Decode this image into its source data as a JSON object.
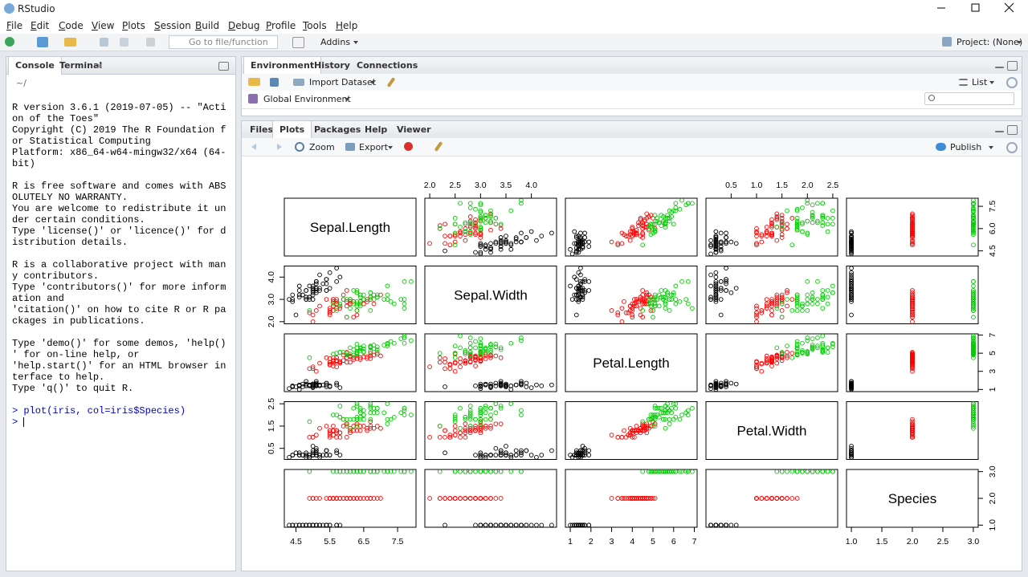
{
  "window": {
    "title": "RStudio"
  },
  "menu": [
    "File",
    "Edit",
    "Code",
    "View",
    "Plots",
    "Session",
    "Build",
    "Debug",
    "Profile",
    "Tools",
    "Help"
  ],
  "toolbar": {
    "goto": "Go to file/function",
    "addins": "Addins",
    "project": "Project: (None)"
  },
  "console": {
    "tabs": [
      "Console",
      "Terminal"
    ],
    "path": "~/",
    "blocks": [
      [
        "R version 3.6.1 (2019-07-05) -- \"Acti",
        "on of the Toes\"",
        "Copyright (C) 2019 The R Foundation f",
        "or Statistical Computing",
        "Platform: x86_64-w64-mingw32/x64 (64-",
        "bit)"
      ],
      [
        "R is free software and comes with ABS",
        "OLUTELY NO WARRANTY.",
        "You are welcome to redistribute it un",
        "der certain conditions.",
        "Type 'license()' or 'licence()' for d",
        "istribution details."
      ],
      [
        "R is a collaborative project with man",
        "y contributors.",
        "Type 'contributors()' for more inform",
        "ation and",
        "'citation()' on how to cite R or R pa",
        "ckages in publications."
      ],
      [
        "Type 'demo()' for some demos, 'help()",
        "' for on-line help, or",
        "'help.start()' for an HTML browser in",
        "terface to help.",
        "Type 'q()' to quit R."
      ]
    ],
    "commands": [
      {
        "prompt": ">",
        "text": "plot(iris, col=iris$Species)"
      },
      {
        "prompt": ">"
      }
    ]
  },
  "environment": {
    "tabs": [
      "Environment",
      "History",
      "Connections"
    ],
    "import": "Import Dataset",
    "view": "List",
    "scope": "Global Environment"
  },
  "files": {
    "tabs": [
      "Files",
      "Plots",
      "Packages",
      "Help",
      "Viewer"
    ],
    "zoom": "Zoom",
    "export": "Export",
    "publish": "Publish"
  },
  "plot": {
    "type": "scatter-matrix",
    "colors": [
      "#000000",
      "#ff0000",
      "#00cd00"
    ],
    "variables": [
      {
        "name": "Sepal.Length",
        "lim": [
          4.156,
          8.044
        ],
        "xticks": [
          4.5,
          5.5,
          6.5,
          7.5
        ],
        "yticks": [
          4.5,
          {
            "value": 6,
            "label": "6.0"
          },
          7.5
        ],
        "values": [
          5.1,
          4.9,
          4.7,
          4.6,
          5.0,
          5.4,
          4.6,
          5.0,
          4.4,
          4.9,
          5.4,
          4.8,
          4.8,
          4.3,
          5.8,
          5.7,
          5.4,
          5.1,
          5.7,
          5.1,
          5.4,
          5.1,
          4.6,
          5.1,
          4.8,
          5.0,
          5.0,
          5.2,
          5.2,
          4.7,
          4.8,
          5.4,
          5.2,
          5.5,
          4.9,
          5.0,
          5.5,
          4.9,
          4.4,
          5.1,
          5.0,
          4.5,
          4.4,
          5.0,
          5.1,
          4.8,
          5.1,
          4.6,
          5.3,
          5.0,
          7.0,
          6.4,
          6.9,
          5.5,
          6.5,
          5.7,
          6.3,
          4.9,
          6.6,
          5.2,
          5.0,
          5.9,
          6.0,
          6.1,
          5.6,
          6.7,
          5.6,
          5.8,
          6.2,
          5.6,
          5.9,
          6.1,
          6.3,
          6.1,
          6.4,
          6.6,
          6.8,
          6.7,
          6.0,
          5.7,
          5.5,
          5.5,
          5.8,
          6.0,
          5.4,
          6.0,
          6.7,
          6.3,
          5.6,
          5.5,
          5.5,
          6.1,
          5.8,
          5.0,
          5.6,
          5.7,
          5.7,
          6.2,
          5.1,
          5.7,
          6.3,
          5.8,
          7.1,
          6.3,
          6.5,
          7.6,
          4.9,
          7.3,
          6.7,
          7.2,
          6.5,
          6.4,
          6.8,
          5.7,
          5.8,
          6.4,
          6.5,
          7.7,
          7.7,
          6.0,
          6.9,
          5.6,
          7.7,
          6.3,
          6.7,
          7.2,
          6.2,
          6.1,
          6.4,
          7.2,
          7.4,
          7.9,
          6.4,
          6.3,
          6.1,
          7.7,
          6.3,
          6.4,
          6.0,
          6.9,
          6.7,
          6.9,
          5.8,
          6.8,
          6.7,
          6.7,
          6.3,
          6.5,
          6.2,
          5.9
        ]
      },
      {
        "name": "Sepal.Width",
        "lim": [
          1.904,
          4.496
        ],
        "xticks": [
          {
            "value": 2,
            "label": "2.0"
          },
          2.5,
          {
            "value": 3,
            "label": "3.0"
          },
          3.5,
          {
            "value": 4,
            "label": "4.0"
          }
        ],
        "yticks": [
          {
            "value": 2,
            "label": "2.0"
          },
          {
            "value": 3,
            "label": "3.0"
          },
          {
            "value": 4,
            "label": "4.0"
          }
        ],
        "values": [
          3.5,
          3.0,
          3.2,
          3.1,
          3.6,
          3.9,
          3.4,
          3.4,
          2.9,
          3.1,
          3.7,
          3.4,
          3.0,
          3.0,
          4.0,
          4.4,
          3.9,
          3.5,
          3.8,
          3.8,
          3.4,
          3.7,
          3.6,
          3.3,
          3.4,
          3.0,
          3.4,
          3.5,
          3.4,
          3.2,
          3.1,
          3.4,
          4.1,
          4.2,
          3.1,
          3.2,
          3.5,
          3.6,
          3.0,
          3.4,
          3.5,
          2.3,
          3.2,
          3.5,
          3.8,
          3.0,
          3.8,
          3.2,
          3.7,
          3.3,
          3.2,
          3.2,
          3.1,
          2.3,
          2.8,
          2.8,
          3.3,
          2.4,
          2.9,
          2.7,
          2.0,
          3.0,
          2.2,
          2.9,
          2.9,
          3.1,
          3.0,
          2.7,
          2.2,
          2.5,
          3.2,
          2.8,
          2.5,
          2.8,
          2.9,
          3.0,
          2.8,
          3.0,
          2.9,
          2.6,
          2.4,
          2.4,
          2.7,
          2.7,
          3.0,
          3.4,
          3.1,
          2.3,
          3.0,
          2.5,
          2.6,
          3.0,
          2.6,
          2.3,
          2.7,
          3.0,
          2.9,
          2.9,
          2.5,
          2.8,
          3.3,
          2.7,
          3.0,
          2.9,
          3.0,
          3.0,
          2.5,
          2.9,
          2.5,
          3.6,
          3.2,
          2.7,
          3.0,
          2.5,
          2.8,
          3.2,
          3.0,
          3.8,
          2.6,
          2.2,
          3.2,
          2.8,
          2.8,
          2.7,
          3.3,
          3.2,
          2.8,
          3.0,
          2.8,
          3.0,
          2.8,
          3.8,
          2.8,
          2.8,
          2.6,
          3.0,
          3.4,
          3.1,
          3.0,
          3.1,
          3.1,
          3.1,
          2.7,
          3.2,
          3.3,
          3.0,
          2.5,
          3.0,
          3.4,
          3.0
        ]
      },
      {
        "name": "Petal.Length",
        "lim": [
          0.764,
          7.136
        ],
        "xticks": [
          1,
          2,
          3,
          4,
          5,
          6,
          7
        ],
        "yticks": [
          1,
          3,
          5,
          7
        ],
        "values": [
          1.4,
          1.4,
          1.3,
          1.5,
          1.4,
          1.7,
          1.4,
          1.5,
          1.4,
          1.5,
          1.5,
          1.6,
          1.4,
          1.1,
          1.2,
          1.5,
          1.3,
          1.4,
          1.7,
          1.5,
          1.7,
          1.5,
          1.0,
          1.7,
          1.9,
          1.6,
          1.6,
          1.5,
          1.4,
          1.6,
          1.6,
          1.5,
          1.5,
          1.4,
          1.5,
          1.2,
          1.3,
          1.4,
          1.3,
          1.5,
          1.3,
          1.3,
          1.3,
          1.6,
          1.9,
          1.4,
          1.6,
          1.4,
          1.5,
          1.4,
          4.7,
          4.5,
          4.9,
          4.0,
          4.6,
          4.5,
          4.7,
          3.3,
          4.6,
          3.9,
          3.5,
          4.2,
          4.0,
          4.7,
          3.6,
          4.4,
          4.5,
          4.1,
          4.5,
          3.9,
          4.8,
          4.0,
          4.9,
          4.7,
          4.3,
          4.4,
          4.8,
          5.0,
          4.5,
          3.5,
          3.8,
          3.7,
          3.9,
          5.1,
          4.5,
          4.5,
          4.7,
          4.4,
          4.1,
          4.0,
          4.4,
          4.6,
          4.0,
          3.3,
          4.2,
          4.2,
          4.2,
          4.3,
          3.0,
          4.1,
          6.0,
          5.1,
          5.9,
          5.6,
          5.8,
          6.6,
          4.5,
          6.3,
          5.8,
          6.1,
          5.1,
          5.3,
          5.5,
          5.0,
          5.1,
          5.3,
          5.5,
          6.7,
          6.9,
          5.0,
          5.7,
          4.9,
          6.7,
          4.9,
          5.7,
          6.0,
          4.8,
          4.9,
          5.6,
          5.8,
          6.1,
          6.4,
          5.6,
          5.1,
          5.6,
          6.1,
          5.6,
          5.5,
          4.8,
          5.4,
          5.6,
          5.1,
          5.1,
          5.9,
          5.7,
          5.2,
          5.0,
          5.2,
          5.4,
          5.1
        ]
      },
      {
        "name": "Petal.Width",
        "lim": [
          0.004,
          2.596
        ],
        "xticks": [
          0.5,
          {
            "value": 1,
            "label": "1.0"
          },
          1.5,
          {
            "value": 2,
            "label": "2.0"
          },
          2.5
        ],
        "yticks": [
          0.5,
          1.5,
          2.5
        ],
        "values": [
          0.2,
          0.2,
          0.2,
          0.2,
          0.2,
          0.4,
          0.3,
          0.2,
          0.2,
          0.1,
          0.2,
          0.2,
          0.1,
          0.1,
          0.2,
          0.4,
          0.4,
          0.3,
          0.3,
          0.3,
          0.2,
          0.4,
          0.2,
          0.5,
          0.2,
          0.2,
          0.4,
          0.2,
          0.2,
          0.2,
          0.2,
          0.4,
          0.1,
          0.2,
          0.2,
          0.2,
          0.2,
          0.1,
          0.2,
          0.2,
          0.3,
          0.3,
          0.2,
          0.6,
          0.4,
          0.3,
          0.2,
          0.2,
          0.2,
          0.2,
          1.4,
          1.5,
          1.5,
          1.3,
          1.5,
          1.3,
          1.6,
          1.0,
          1.3,
          1.4,
          1.0,
          1.5,
          1.0,
          1.4,
          1.3,
          1.4,
          1.5,
          1.0,
          1.5,
          1.1,
          1.8,
          1.3,
          1.5,
          1.2,
          1.3,
          1.4,
          1.4,
          1.7,
          1.5,
          1.0,
          1.1,
          1.0,
          1.2,
          1.6,
          1.5,
          1.6,
          1.5,
          1.3,
          1.3,
          1.3,
          1.2,
          1.4,
          1.2,
          1.0,
          1.3,
          1.2,
          1.3,
          1.3,
          1.1,
          1.3,
          2.5,
          1.9,
          2.1,
          1.8,
          2.2,
          2.1,
          1.7,
          1.8,
          1.8,
          2.5,
          2.0,
          1.9,
          2.1,
          2.0,
          2.4,
          2.3,
          1.8,
          2.2,
          2.3,
          1.5,
          2.3,
          2.0,
          2.0,
          1.8,
          2.1,
          1.8,
          1.8,
          1.8,
          2.1,
          1.6,
          1.9,
          2.0,
          2.2,
          1.5,
          1.4,
          2.3,
          2.4,
          1.8,
          1.8,
          2.1,
          2.4,
          2.3,
          1.9,
          2.3,
          2.5,
          2.3,
          1.9,
          2.0,
          2.3,
          1.8
        ]
      },
      {
        "name": "Species",
        "lim": [
          0.92,
          3.08
        ],
        "xticks": [
          {
            "value": 1,
            "label": "1.0"
          },
          1.5,
          {
            "value": 2,
            "label": "2.0"
          },
          2.5,
          {
            "value": 3,
            "label": "3.0"
          }
        ],
        "yticks": [
          {
            "value": 1,
            "label": "1.0"
          },
          {
            "value": 2,
            "label": "2.0"
          },
          {
            "value": 3,
            "label": "3.0"
          }
        ],
        "values": [
          1,
          1,
          1,
          1,
          1,
          1,
          1,
          1,
          1,
          1,
          1,
          1,
          1,
          1,
          1,
          1,
          1,
          1,
          1,
          1,
          1,
          1,
          1,
          1,
          1,
          1,
          1,
          1,
          1,
          1,
          1,
          1,
          1,
          1,
          1,
          1,
          1,
          1,
          1,
          1,
          1,
          1,
          1,
          1,
          1,
          1,
          1,
          1,
          1,
          1,
          2,
          2,
          2,
          2,
          2,
          2,
          2,
          2,
          2,
          2,
          2,
          2,
          2,
          2,
          2,
          2,
          2,
          2,
          2,
          2,
          2,
          2,
          2,
          2,
          2,
          2,
          2,
          2,
          2,
          2,
          2,
          2,
          2,
          2,
          2,
          2,
          2,
          2,
          2,
          2,
          2,
          2,
          2,
          2,
          2,
          2,
          2,
          2,
          2,
          2,
          3,
          3,
          3,
          3,
          3,
          3,
          3,
          3,
          3,
          3,
          3,
          3,
          3,
          3,
          3,
          3,
          3,
          3,
          3,
          3,
          3,
          3,
          3,
          3,
          3,
          3,
          3,
          3,
          3,
          3,
          3,
          3,
          3,
          3,
          3,
          3,
          3,
          3,
          3,
          3,
          3,
          3,
          3,
          3,
          3,
          3,
          3,
          3,
          3,
          3
        ]
      }
    ]
  }
}
